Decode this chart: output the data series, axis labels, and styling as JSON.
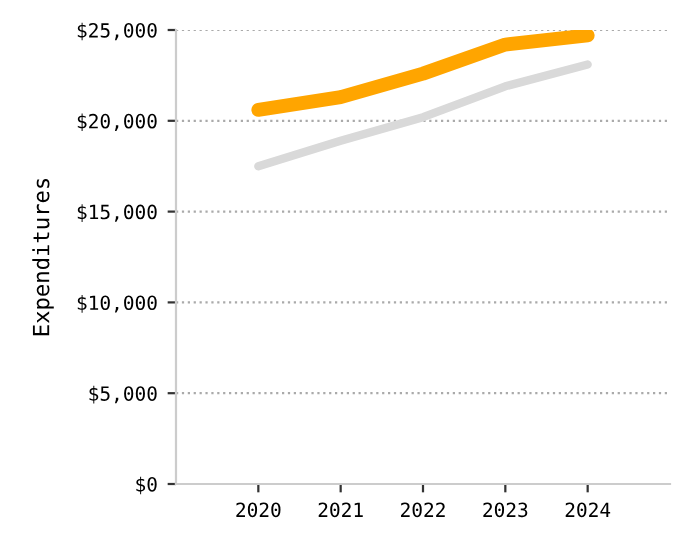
{
  "chart_data": {
    "type": "line",
    "ylabel": "Expenditures",
    "categories": [
      "2020",
      "2021",
      "2022",
      "2023",
      "2024"
    ],
    "series": [
      {
        "color": "#d9d9d9",
        "values": [
          17500,
          18900,
          20200,
          21900,
          23100
        ]
      },
      {
        "color": "#ffa500",
        "values": [
          20600,
          21300,
          22600,
          24200,
          24700
        ]
      }
    ],
    "ylim": [
      0,
      25000
    ],
    "yticks": [
      {
        "value": 0,
        "label": "$0"
      },
      {
        "value": 5000,
        "label": "$5,000"
      },
      {
        "value": 10000,
        "label": "$10,000"
      },
      {
        "value": 15000,
        "label": "$15,000"
      },
      {
        "value": 20000,
        "label": "$20,000"
      },
      {
        "value": 25000,
        "label": "$25,000"
      }
    ],
    "grid": "y",
    "legend": false
  }
}
